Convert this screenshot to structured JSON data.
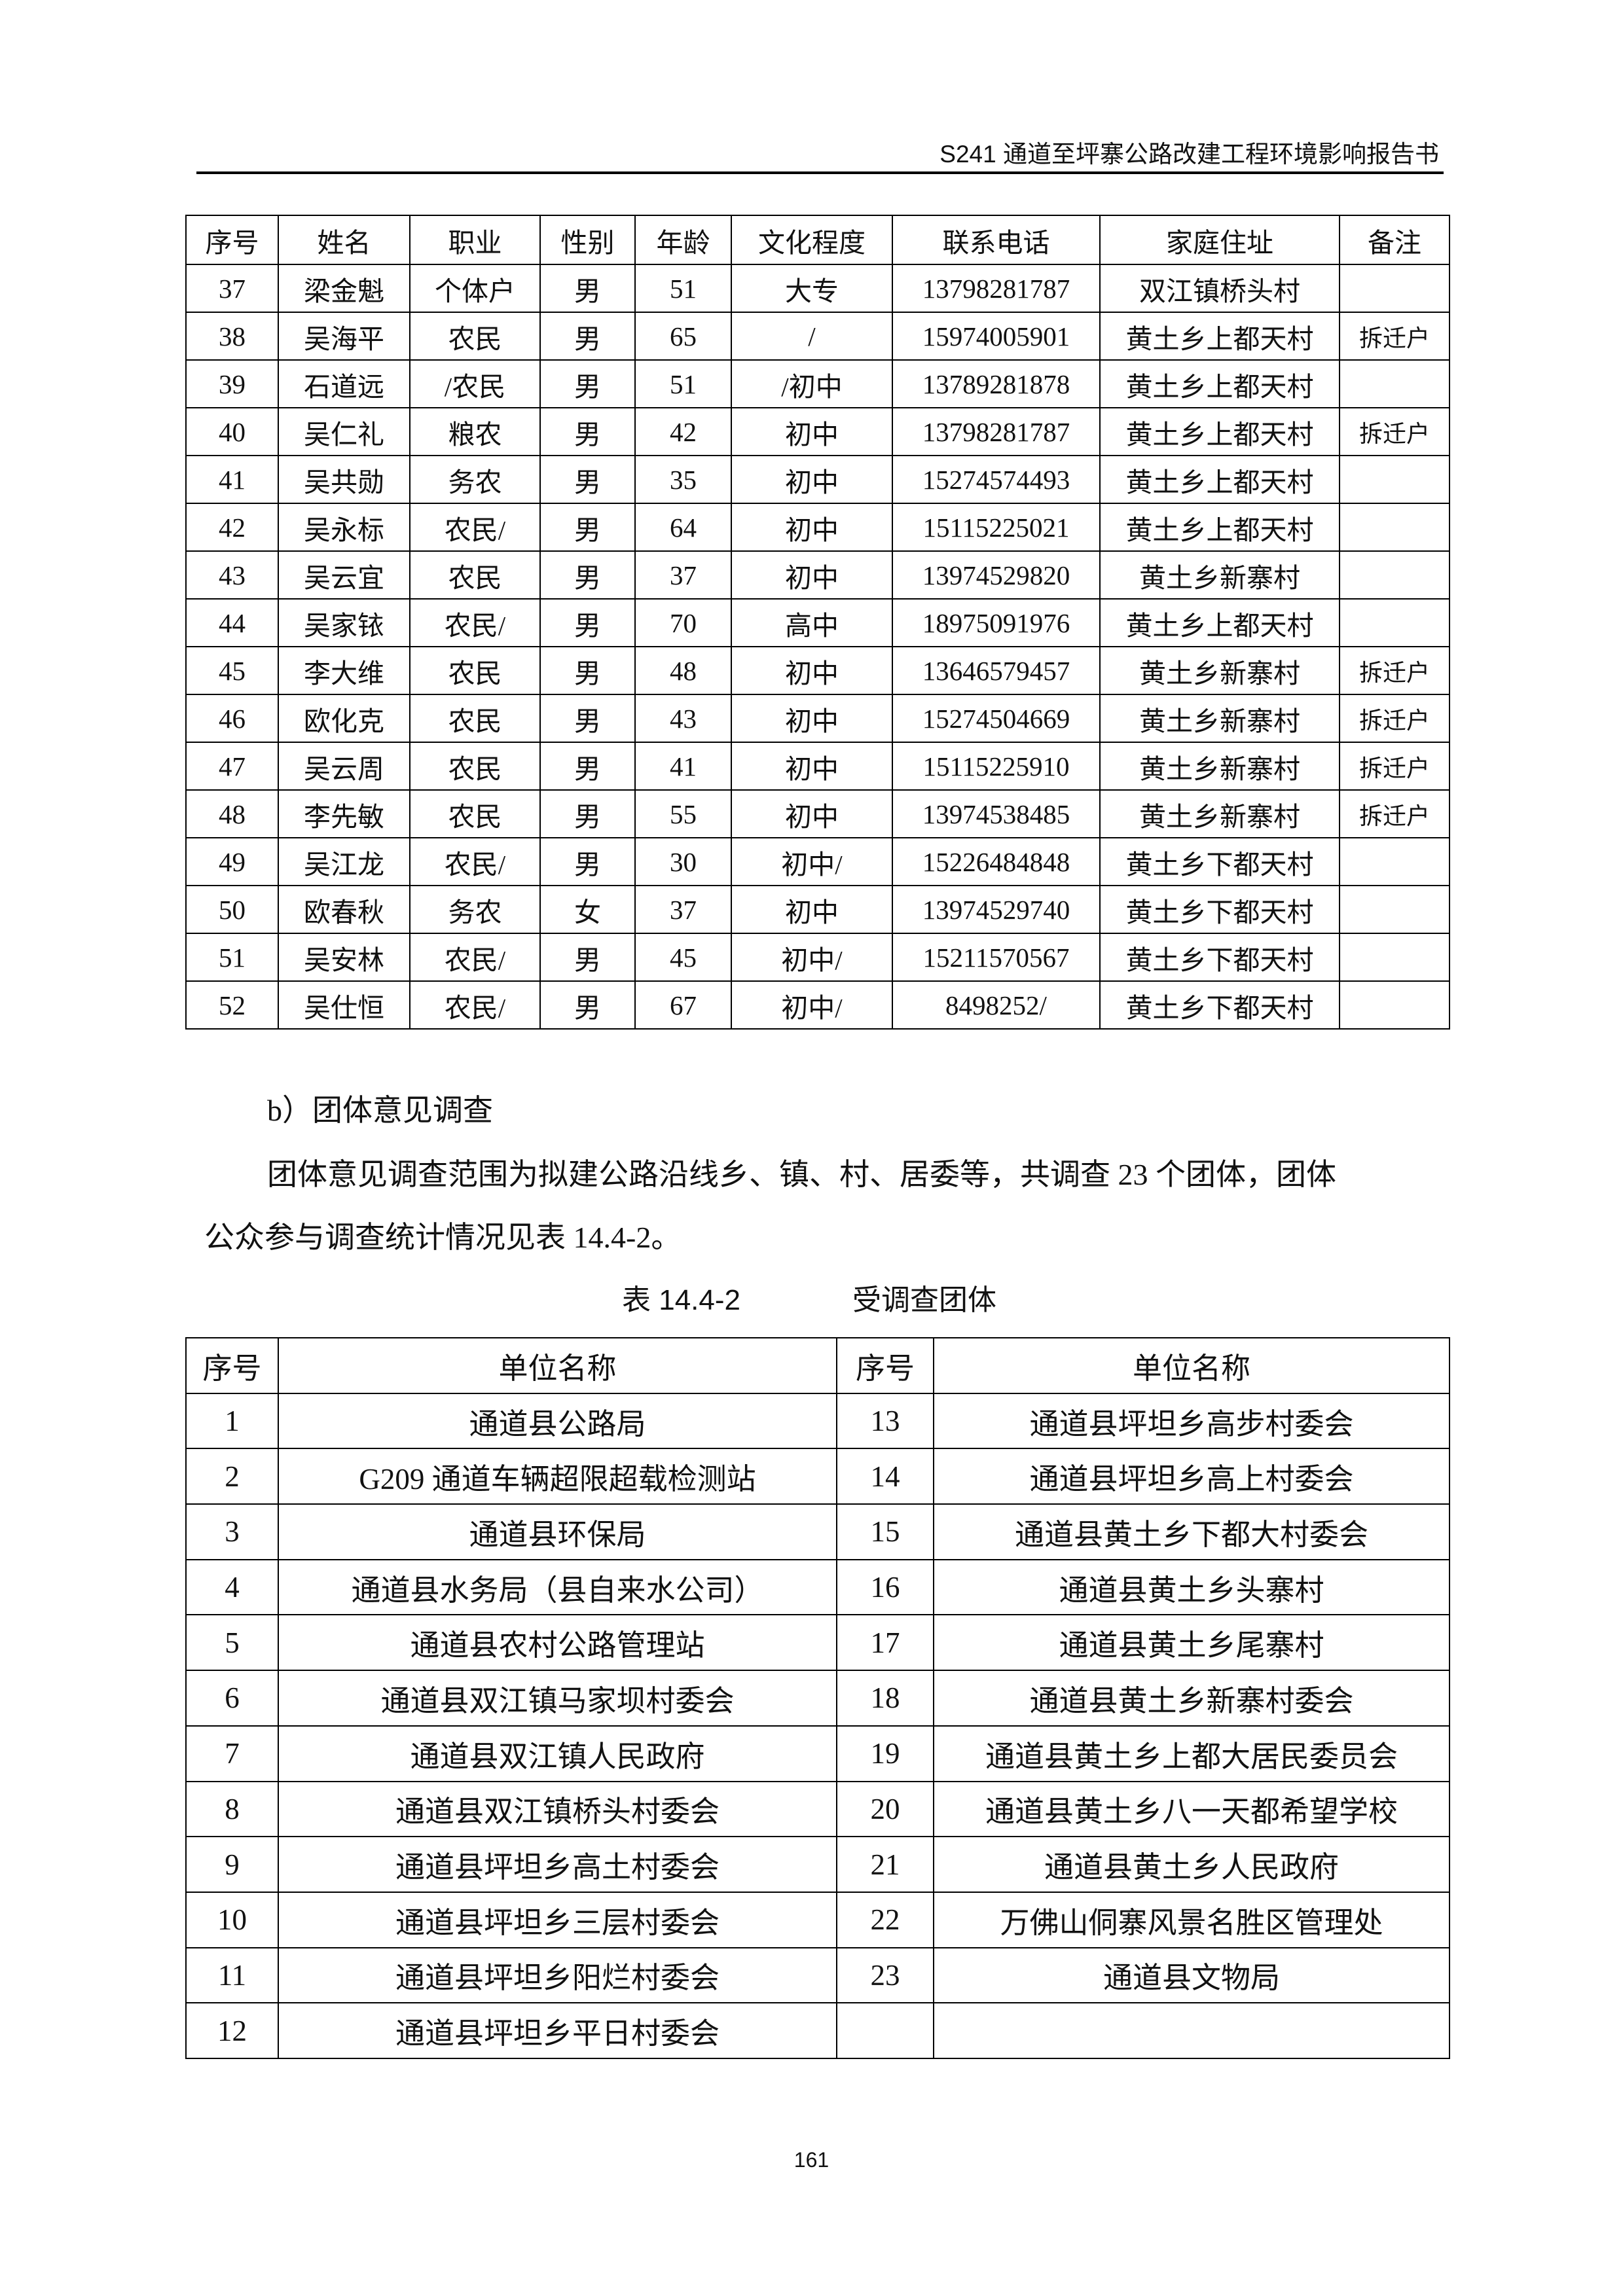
{
  "header": {
    "title": "S241 通道至坪寨公路改建工程环境影响报告书"
  },
  "table1": {
    "columns": [
      "序号",
      "姓名",
      "职业",
      "性别",
      "年龄",
      "文化程度",
      "联系电话",
      "家庭住址",
      "备注"
    ],
    "rows": [
      [
        "37",
        "梁金魁",
        "个体户",
        "男",
        "51",
        "大专",
        "13798281787",
        "双江镇桥头村",
        ""
      ],
      [
        "38",
        "吴海平",
        "农民",
        "男",
        "65",
        "/",
        "15974005901",
        "黄土乡上都天村",
        "拆迁户"
      ],
      [
        "39",
        "石道远",
        "/农民",
        "男",
        "51",
        "/初中",
        "13789281878",
        "黄土乡上都天村",
        ""
      ],
      [
        "40",
        "吴仁礼",
        "粮农",
        "男",
        "42",
        "初中",
        "13798281787",
        "黄土乡上都天村",
        "拆迁户"
      ],
      [
        "41",
        "吴共勋",
        "务农",
        "男",
        "35",
        "初中",
        "15274574493",
        "黄土乡上都天村",
        ""
      ],
      [
        "42",
        "吴永标",
        "农民/",
        "男",
        "64",
        "初中",
        "15115225021",
        "黄土乡上都天村",
        ""
      ],
      [
        "43",
        "吴云宜",
        "农民",
        "男",
        "37",
        "初中",
        "13974529820",
        "黄土乡新寨村",
        ""
      ],
      [
        "44",
        "吴家铱",
        "农民/",
        "男",
        "70",
        "高中",
        "18975091976",
        "黄土乡上都天村",
        ""
      ],
      [
        "45",
        "李大维",
        "农民",
        "男",
        "48",
        "初中",
        "13646579457",
        "黄土乡新寨村",
        "拆迁户"
      ],
      [
        "46",
        "欧化克",
        "农民",
        "男",
        "43",
        "初中",
        "15274504669",
        "黄土乡新寨村",
        "拆迁户"
      ],
      [
        "47",
        "吴云周",
        "农民",
        "男",
        "41",
        "初中",
        "15115225910",
        "黄土乡新寨村",
        "拆迁户"
      ],
      [
        "48",
        "李先敏",
        "农民",
        "男",
        "55",
        "初中",
        "13974538485",
        "黄土乡新寨村",
        "拆迁户"
      ],
      [
        "49",
        "吴江龙",
        "农民/",
        "男",
        "30",
        "初中/",
        "15226484848",
        "黄土乡下都天村",
        ""
      ],
      [
        "50",
        "欧春秋",
        "务农",
        "女",
        "37",
        "初中",
        "13974529740",
        "黄土乡下都天村",
        ""
      ],
      [
        "51",
        "吴安林",
        "农民/",
        "男",
        "45",
        "初中/",
        "15211570567",
        "黄土乡下都天村",
        ""
      ],
      [
        "52",
        "吴仕恒",
        "农民/",
        "男",
        "67",
        "初中/",
        "8498252/",
        "黄土乡下都天村",
        ""
      ]
    ]
  },
  "section": {
    "heading": "b）团体意见调查",
    "para_line1": "团体意见调查范围为拟建公路沿线乡、镇、村、居委等，共调查 23 个团体，团体",
    "para_line2": "公众参与调查统计情况见表 14.4-2。"
  },
  "caption": {
    "number": "表 14.4-2",
    "title": "受调查团体"
  },
  "table2": {
    "columns": [
      "序号",
      "单位名称",
      "序号",
      "单位名称"
    ],
    "rows": [
      [
        "1",
        "通道县公路局",
        "13",
        "通道县坪坦乡高步村委会"
      ],
      [
        "2",
        "G209 通道车辆超限超载检测站",
        "14",
        "通道县坪坦乡高上村委会"
      ],
      [
        "3",
        "通道县环保局",
        "15",
        "通道县黄土乡下都大村委会"
      ],
      [
        "4",
        "通道县水务局（县自来水公司）",
        "16",
        "通道县黄土乡头寨村"
      ],
      [
        "5",
        "通道县农村公路管理站",
        "17",
        "通道县黄土乡尾寨村"
      ],
      [
        "6",
        "通道县双江镇马家坝村委会",
        "18",
        "通道县黄土乡新寨村委会"
      ],
      [
        "7",
        "通道县双江镇人民政府",
        "19",
        "通道县黄土乡上都大居民委员会"
      ],
      [
        "8",
        "通道县双江镇桥头村委会",
        "20",
        "通道县黄土乡八一天都希望学校"
      ],
      [
        "9",
        "通道县坪坦乡高土村委会",
        "21",
        "通道县黄土乡人民政府"
      ],
      [
        "10",
        "通道县坪坦乡三层村委会",
        "22",
        "万佛山侗寨风景名胜区管理处"
      ],
      [
        "11",
        "通道县坪坦乡阳烂村委会",
        "23",
        "通道县文物局"
      ],
      [
        "12",
        "通道县坪坦乡平日村委会",
        "",
        ""
      ]
    ]
  },
  "page_number": "161"
}
